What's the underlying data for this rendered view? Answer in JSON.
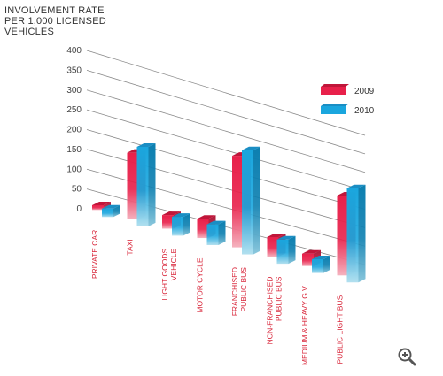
{
  "chart_data": {
    "type": "bar",
    "title_lines": [
      "INVOLVEMENT RATE",
      "PER 1,000 LICENSED",
      "VEHICLES"
    ],
    "y_ticks": [
      "400",
      "350",
      "300",
      "250",
      "200",
      "150",
      "100",
      "50",
      "0"
    ],
    "ylim": [
      0,
      400
    ],
    "grid": true,
    "legend_position": "top-right",
    "categories": [
      [
        "PRIVATE CAR"
      ],
      [
        "TAXI"
      ],
      [
        "LIGHT GOODS",
        "VEHICLE"
      ],
      [
        "MOTOR CYCLE"
      ],
      [
        "FRANCHISED",
        "PUBLIC BUS"
      ],
      [
        "NON-FRANCHISED",
        "PUBLIC BUS"
      ],
      [
        "MEDIUM & HEAVY G V"
      ],
      [
        "PUBLIC LIGHT BUS"
      ]
    ],
    "series": [
      {
        "name": "2009",
        "values": [
          12,
          170,
          35,
          50,
          240,
          52,
          33,
          215
        ]
      },
      {
        "name": "2010",
        "values": [
          8,
          190,
          35,
          40,
          260,
          50,
          23,
          240
        ]
      }
    ],
    "colors": {
      "2009": "#e8204a",
      "2010": "#1aa6de",
      "grid": "#8a8a8a",
      "label": "#d9283c"
    }
  },
  "controls": {
    "zoom_icon": "zoom-in-icon"
  }
}
